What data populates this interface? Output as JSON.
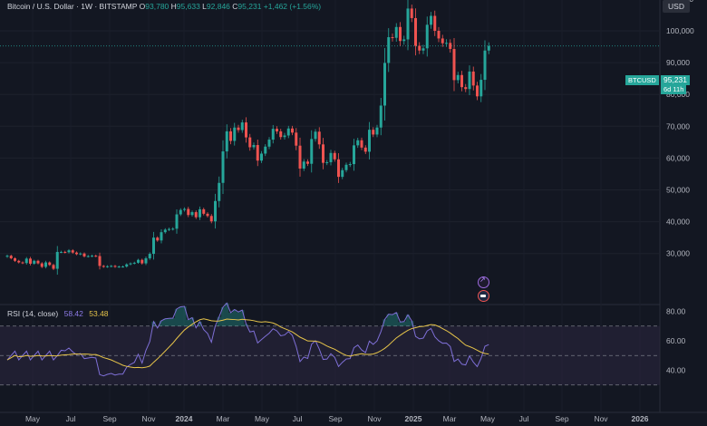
{
  "header": {
    "symbol_desc": "Bitcoin / U.S. Dollar · 1W · BITSTAMP",
    "o_label": "O",
    "o_value": "93,780",
    "h_label": "H",
    "h_value": "95,633",
    "l_label": "L",
    "l_value": "92,846",
    "c_label": "C",
    "c_value": "95,231",
    "change": "+1,462 (+1.56%)"
  },
  "currency_button": "USD",
  "price_tag": {
    "symbol": "BTCUSD",
    "price": "95,231",
    "countdown": "6d 11h"
  },
  "rsi_legend": {
    "label": "RSI (14, close)",
    "rsi": "58.42",
    "ma": "53.48"
  },
  "colors": {
    "up": "#26a69a",
    "down": "#ef5350",
    "rsi": "#7e6fd6",
    "rsi_ma": "#e6c44a",
    "band": "#2c2640"
  },
  "chart_data": [
    {
      "type": "candlestick",
      "title": "",
      "x_tick_labels": [
        "May",
        "Jul",
        "Sep",
        "Nov",
        "2024",
        "Mar",
        "May",
        "Jul",
        "Sep",
        "Nov",
        "2025",
        "Mar",
        "May",
        "Jul",
        "Sep",
        "Nov",
        "2026"
      ],
      "y_ticks": [
        30000,
        40000,
        50000,
        60000,
        70000,
        80000,
        90000,
        100000,
        110000
      ],
      "y_tick_labels": [
        "30,000",
        "40,000",
        "50,000",
        "60,000",
        "70,000",
        "80,000",
        "90,000",
        "100,000",
        "110,000"
      ],
      "ylim": [
        25000,
        115000
      ],
      "last_price": 95231,
      "closes": [
        29300,
        28500,
        27700,
        27200,
        27000,
        28400,
        26800,
        27700,
        26900,
        25800,
        27200,
        26400,
        25200,
        30500,
        30500,
        30400,
        31000,
        30300,
        29800,
        30000,
        29100,
        29200,
        29300,
        29200,
        26100,
        25800,
        26000,
        26100,
        25800,
        25900,
        25900,
        26600,
        26900,
        27100,
        28000,
        26900,
        28500,
        29900,
        35000,
        34100,
        36700,
        37500,
        37700,
        37800,
        42300,
        43700,
        44000,
        42100,
        43000,
        41400,
        43900,
        42500,
        41800,
        40100,
        46500,
        52200,
        62100,
        68400,
        65400,
        69600,
        68800,
        71200,
        66500,
        63400,
        64100,
        59200,
        61400,
        63600,
        65800,
        69200,
        68400,
        66600,
        67100,
        69300,
        68000,
        63900,
        56700,
        58900,
        58200,
        66000,
        68300,
        64300,
        58500,
        58700,
        61600,
        59600,
        54100,
        56200,
        57900,
        58100,
        64000,
        65600,
        63300,
        62000,
        68900,
        67400,
        69600,
        76500,
        89900,
        98000,
        97800,
        101200,
        96800,
        97300,
        107000,
        104000,
        95300,
        93800,
        94500,
        101900,
        104700,
        100000,
        97600,
        96100,
        96200,
        94300,
        84500,
        86100,
        82300,
        81700,
        87200,
        82800,
        79400,
        84600,
        93800,
        95231
      ],
      "series": [
        {
          "name": "",
          "indicator": "RSI (14, close)",
          "last": 58.42
        },
        {
          "name": "",
          "indicator": "RSI moving average",
          "last": 53.48
        }
      ],
      "rsi_y_ticks": [
        40,
        60,
        80
      ],
      "rsi_ylim": [
        22,
        88
      ],
      "rsi_bands": {
        "upper": 70,
        "middle": 50,
        "lower": 30
      }
    }
  ]
}
